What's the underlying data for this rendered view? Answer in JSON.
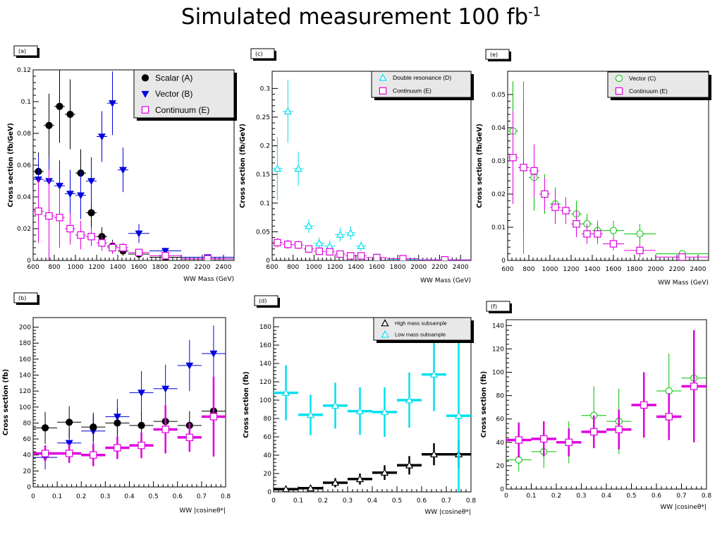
{
  "slide": {
    "title_main": "Simulated measurement 100 fb",
    "title_sup": "-1"
  },
  "colors": {
    "scalar": "#000000",
    "vector_b": "#0000e0",
    "continuum": "#e000e0",
    "double_resonance": "#00e0f0",
    "vector_c": "#00c000",
    "high_mass": "#000000",
    "low_mass": "#00e0f0",
    "legend_shadow": "#000000",
    "legend_fill": "#e8e8e8"
  },
  "chart_data": [
    {
      "id": "a",
      "panel_label": "(a)",
      "type": "scatter",
      "xlabel": "WW Mass (GeV)",
      "ylabel": "Cross section (fb/GeV)",
      "xlim": [
        600,
        2500
      ],
      "ylim": [
        0,
        0.12
      ],
      "xticks": [
        600,
        800,
        1000,
        1200,
        1400,
        1600,
        1800,
        2000,
        2200,
        2400
      ],
      "xtick_labels": [
        "600",
        "800",
        "1000",
        "1200",
        "1400",
        "1600",
        "1800",
        "2000",
        "2200",
        "2400"
      ],
      "yticks": [
        0,
        0.02,
        0.04,
        0.06,
        0.08,
        0.1,
        0.12
      ],
      "ytick_labels": [
        "0",
        "0.02",
        "0.04",
        "0.06",
        "0.08",
        "0.1",
        "0.12"
      ],
      "legend_position": "top-right",
      "legend_font": 12,
      "series": [
        {
          "name": "Scalar (A)",
          "marker": "circle-filled",
          "color": "#000000",
          "lw": 1,
          "x": [
            650,
            750,
            850,
            950,
            1050,
            1150,
            1250,
            1350,
            1450,
            1600,
            1850,
            2250
          ],
          "xerr": [
            50,
            50,
            50,
            50,
            50,
            50,
            50,
            50,
            50,
            100,
            150,
            250
          ],
          "y": [
            0.056,
            0.085,
            0.097,
            0.092,
            0.055,
            0.03,
            0.015,
            0.009,
            0.006,
            0.004,
            0.002,
            0.001
          ],
          "yerr": [
            0.012,
            0.02,
            0.023,
            0.022,
            0.015,
            0.01,
            0.006,
            0.004,
            0.003,
            0.002,
            0.001,
            0.0007
          ]
        },
        {
          "name": "Vector (B)",
          "marker": "triangle-down-filled",
          "color": "#0000e0",
          "lw": 1,
          "x": [
            650,
            750,
            850,
            950,
            1050,
            1150,
            1250,
            1350,
            1450,
            1600,
            1850,
            2250
          ],
          "xerr": [
            50,
            50,
            50,
            50,
            50,
            50,
            50,
            50,
            50,
            100,
            150,
            250
          ],
          "y": [
            0.051,
            0.05,
            0.047,
            0.042,
            0.041,
            0.05,
            0.078,
            0.099,
            0.057,
            0.017,
            0.006,
            0.002
          ],
          "yerr": [
            0.015,
            0.015,
            0.016,
            0.015,
            0.015,
            0.015,
            0.016,
            0.02,
            0.014,
            0.006,
            0.002,
            0.001
          ]
        },
        {
          "name": "Continuum (E)",
          "marker": "square-open",
          "color": "#e000e0",
          "lw": 1,
          "x": [
            650,
            750,
            850,
            950,
            1050,
            1150,
            1250,
            1350,
            1450,
            1600,
            1850,
            2250
          ],
          "xerr": [
            50,
            50,
            50,
            50,
            50,
            50,
            50,
            50,
            50,
            100,
            150,
            250
          ],
          "y": [
            0.031,
            0.028,
            0.027,
            0.02,
            0.016,
            0.015,
            0.011,
            0.008,
            0.008,
            0.005,
            0.003,
            0.001
          ],
          "yerr": [
            0.02,
            0.029,
            0.019,
            0.01,
            0.009,
            0.006,
            0.005,
            0.004,
            0.003,
            0.002,
            0.002,
            0.001
          ]
        }
      ]
    },
    {
      "id": "c",
      "panel_label": "(c)",
      "type": "scatter",
      "xlabel": "WW Mass (GeV)",
      "ylabel": "Cross section (fb/GeV)",
      "xlim": [
        600,
        2500
      ],
      "ylim": [
        0,
        0.33
      ],
      "xticks": [
        600,
        800,
        1000,
        1200,
        1400,
        1600,
        1800,
        2000,
        2200,
        2400
      ],
      "xtick_labels": [
        "600",
        "800",
        "1000",
        "1200",
        "1400",
        "1600",
        "1800",
        "2000",
        "2200",
        "2400"
      ],
      "yticks": [
        0,
        0.05,
        0.1,
        0.15,
        0.2,
        0.25,
        0.3
      ],
      "ytick_labels": [
        "0",
        "0.05",
        "0.1",
        "0.15",
        "0.2",
        "0.25",
        "0.3"
      ],
      "legend_position": "top-right",
      "legend_font": 8.5,
      "series": [
        {
          "name": "Double resonance (D)",
          "marker": "triangle-up-open",
          "color": "#00e0f0",
          "lw": 1,
          "x": [
            650,
            750,
            850,
            950,
            1050,
            1150,
            1250,
            1350,
            1450,
            1600,
            1850,
            2250
          ],
          "xerr": [
            50,
            50,
            50,
            50,
            50,
            50,
            50,
            50,
            50,
            100,
            150,
            250
          ],
          "y": [
            0.16,
            0.26,
            0.16,
            0.06,
            0.03,
            0.025,
            0.045,
            0.048,
            0.025,
            0.005,
            0.002,
            0.001
          ],
          "yerr": [
            0.055,
            0.055,
            0.03,
            0.012,
            0.01,
            0.01,
            0.012,
            0.012,
            0.009,
            0.003,
            0.001,
            0.001
          ]
        },
        {
          "name": "Continuum (E)",
          "marker": "square-open",
          "color": "#e000e0",
          "lw": 1,
          "x": [
            650,
            750,
            850,
            950,
            1050,
            1150,
            1250,
            1350,
            1450,
            1600,
            1850,
            2250
          ],
          "xerr": [
            50,
            50,
            50,
            50,
            50,
            50,
            50,
            50,
            50,
            100,
            150,
            250
          ],
          "y": [
            0.031,
            0.028,
            0.027,
            0.02,
            0.016,
            0.015,
            0.011,
            0.008,
            0.008,
            0.005,
            0.003,
            0.001
          ],
          "yerr": [
            0.008,
            0.008,
            0.007,
            0.006,
            0.005,
            0.005,
            0.004,
            0.003,
            0.003,
            0.002,
            0.001,
            0.001
          ]
        }
      ]
    },
    {
      "id": "e",
      "panel_label": "(e)",
      "type": "scatter",
      "xlabel": "WW Mass (GeV)",
      "ylabel": "Cross section (fb/GeV)",
      "xlim": [
        600,
        2500
      ],
      "ylim": [
        0,
        0.057
      ],
      "xticks": [
        600,
        800,
        1000,
        1200,
        1400,
        1600,
        1800,
        2000,
        2200,
        2400
      ],
      "xtick_labels": [
        "600",
        "800",
        "1000",
        "1200",
        "1400",
        "1600",
        "1800",
        "2000",
        "2200",
        "2400"
      ],
      "yticks": [
        0,
        0.01,
        0.02,
        0.03,
        0.04,
        0.05
      ],
      "ytick_labels": [
        "0",
        "0.01",
        "0.02",
        "0.03",
        "0.04",
        "0.05"
      ],
      "legend_position": "top-right",
      "legend_font": 8.5,
      "series": [
        {
          "name": "Vector (C)",
          "marker": "circle-open",
          "color": "#00c000",
          "lw": 1,
          "x": [
            650,
            750,
            850,
            950,
            1050,
            1150,
            1250,
            1350,
            1450,
            1600,
            1850,
            2250
          ],
          "xerr": [
            50,
            50,
            50,
            50,
            50,
            50,
            50,
            50,
            50,
            100,
            150,
            250
          ],
          "y": [
            0.039,
            0.028,
            0.025,
            0.02,
            0.017,
            0.015,
            0.014,
            0.011,
            0.009,
            0.009,
            0.008,
            0.002
          ],
          "yerr": [
            0.015,
            0.026,
            0.01,
            0.006,
            0.005,
            0.004,
            0.004,
            0.003,
            0.003,
            0.003,
            0.003,
            0.001
          ]
        },
        {
          "name": "Continuum (E)",
          "marker": "square-open",
          "color": "#e000e0",
          "lw": 1,
          "x": [
            650,
            750,
            850,
            950,
            1050,
            1150,
            1250,
            1350,
            1450,
            1600,
            1850,
            2250
          ],
          "xerr": [
            50,
            50,
            50,
            50,
            50,
            50,
            50,
            50,
            50,
            100,
            150,
            250
          ],
          "y": [
            0.031,
            0.028,
            0.027,
            0.02,
            0.016,
            0.015,
            0.011,
            0.008,
            0.008,
            0.005,
            0.003,
            0.001
          ],
          "yerr": [
            0.014,
            0.02,
            0.008,
            0.005,
            0.005,
            0.004,
            0.004,
            0.003,
            0.003,
            0.002,
            0.002,
            0.001
          ]
        }
      ]
    },
    {
      "id": "b",
      "panel_label": "(b)",
      "type": "scatter",
      "xlabel": "WW |cosineθ*|",
      "ylabel": "Cross section (fb)",
      "xlim": [
        0,
        0.8
      ],
      "ylim": [
        0,
        212
      ],
      "xticks": [
        0,
        0.1,
        0.2,
        0.3,
        0.4,
        0.5,
        0.6,
        0.7,
        0.8
      ],
      "xtick_labels": [
        "0",
        "0.1",
        "0.2",
        "0.3",
        "0.4",
        "0.5",
        "0.6",
        "0.7",
        "0.8"
      ],
      "yticks": [
        0,
        20,
        40,
        60,
        80,
        100,
        120,
        140,
        160,
        180,
        200
      ],
      "ytick_labels": [
        "0",
        "20",
        "40",
        "60",
        "80",
        "100",
        "120",
        "140",
        "160",
        "180",
        "200"
      ],
      "legend_position": "none",
      "legend_font": 0,
      "series": [
        {
          "name": "",
          "marker": "triangle-down-filled",
          "color": "#0000e0",
          "lw": 1,
          "x": [
            0.05,
            0.15,
            0.25,
            0.35,
            0.45,
            0.55,
            0.65,
            0.75
          ],
          "xerr": [
            0.05,
            0.05,
            0.05,
            0.05,
            0.05,
            0.05,
            0.05,
            0.05
          ],
          "y": [
            37,
            55,
            70,
            88,
            118,
            123,
            152,
            167
          ],
          "yerr": [
            15,
            18,
            20,
            22,
            27,
            30,
            32,
            35
          ]
        },
        {
          "name": "",
          "marker": "circle-filled",
          "color": "#000000",
          "lw": 1,
          "x": [
            0.05,
            0.15,
            0.25,
            0.35,
            0.45,
            0.55,
            0.65,
            0.75
          ],
          "xerr": [
            0.05,
            0.05,
            0.05,
            0.05,
            0.05,
            0.05,
            0.05,
            0.05
          ],
          "y": [
            74,
            81,
            75,
            80,
            77,
            82,
            77,
            95
          ],
          "yerr": [
            20,
            20,
            18,
            18,
            17,
            18,
            18,
            25
          ]
        },
        {
          "name": "",
          "marker": "square-open",
          "color": "#e000e0",
          "lw": 3.5,
          "x": [
            0.05,
            0.15,
            0.25,
            0.35,
            0.45,
            0.55,
            0.65,
            0.75
          ],
          "xerr": [
            0.05,
            0.05,
            0.05,
            0.05,
            0.05,
            0.05,
            0.05,
            0.05
          ],
          "y": [
            42,
            42,
            40,
            49,
            52,
            72,
            62,
            88
          ],
          "yerr": [
            10,
            12,
            14,
            14,
            16,
            30,
            18,
            50
          ]
        }
      ]
    },
    {
      "id": "d",
      "panel_label": "(d)",
      "type": "scatter",
      "xlabel": "WW |cosineθ*|",
      "ylabel": "Cross section (fb)",
      "xlim": [
        0,
        0.8
      ],
      "ylim": [
        0,
        190
      ],
      "xticks": [
        0,
        0.1,
        0.2,
        0.3,
        0.4,
        0.5,
        0.6,
        0.7,
        0.8
      ],
      "xtick_labels": [
        "0",
        "0.1",
        "0.2",
        "0.3",
        "0.4",
        "0.5",
        "0.6",
        "0.7",
        "0.8"
      ],
      "yticks": [
        0,
        20,
        40,
        60,
        80,
        100,
        120,
        140,
        160,
        180
      ],
      "ytick_labels": [
        "0",
        "20",
        "40",
        "60",
        "80",
        "100",
        "120",
        "140",
        "160",
        "180"
      ],
      "legend_position": "top-right",
      "legend_font": 7.5,
      "series": [
        {
          "name": "High mass subsample",
          "marker": "triangle-up-open",
          "color": "#000000",
          "lw": 3.5,
          "x": [
            0.05,
            0.15,
            0.25,
            0.35,
            0.45,
            0.55,
            0.65,
            0.75
          ],
          "xerr": [
            0.05,
            0.05,
            0.05,
            0.05,
            0.05,
            0.05,
            0.05,
            0.05
          ],
          "y": [
            3,
            4,
            10,
            14,
            21,
            29,
            41,
            41
          ],
          "yerr": [
            2,
            3,
            5,
            6,
            8,
            10,
            12,
            15
          ]
        },
        {
          "name": "Low mass subsample",
          "marker": "triangle-up-open",
          "color": "#00e0f0",
          "lw": 3.5,
          "x": [
            0.05,
            0.15,
            0.25,
            0.35,
            0.45,
            0.55,
            0.65,
            0.75
          ],
          "xerr": [
            0.05,
            0.05,
            0.05,
            0.05,
            0.05,
            0.05,
            0.05,
            0.05
          ],
          "y": [
            108,
            84,
            94,
            88,
            87,
            100,
            128,
            83
          ],
          "yerr": [
            30,
            22,
            25,
            26,
            27,
            30,
            40,
            83
          ]
        }
      ]
    },
    {
      "id": "f",
      "panel_label": "(f)",
      "type": "scatter",
      "xlabel": "WW |cosineθ*|",
      "ylabel": "Cross section (fb)",
      "xlim": [
        0,
        0.8
      ],
      "ylim": [
        0,
        145
      ],
      "xticks": [
        0,
        0.1,
        0.2,
        0.3,
        0.4,
        0.5,
        0.6,
        0.7,
        0.8
      ],
      "xtick_labels": [
        "0",
        "0.1",
        "0.2",
        "0.3",
        "0.4",
        "0.5",
        "0.6",
        "0.7",
        "0.8"
      ],
      "yticks": [
        0,
        20,
        40,
        60,
        80,
        100,
        120,
        140
      ],
      "ytick_labels": [
        "0",
        "20",
        "40",
        "60",
        "80",
        "100",
        "120",
        "140"
      ],
      "legend_position": "none",
      "legend_font": 0,
      "series": [
        {
          "name": "",
          "marker": "circle-open",
          "color": "#00c000",
          "lw": 1,
          "x": [
            0.05,
            0.15,
            0.25,
            0.35,
            0.45,
            0.55,
            0.65,
            0.75
          ],
          "xerr": [
            0.05,
            0.05,
            0.05,
            0.05,
            0.05,
            0.05,
            0.05,
            0.05
          ],
          "y": [
            25,
            32,
            40,
            63,
            58,
            72,
            84,
            95
          ],
          "yerr": [
            10,
            14,
            18,
            25,
            28,
            28,
            32,
            40
          ]
        },
        {
          "name": "",
          "marker": "square-open",
          "color": "#e000e0",
          "lw": 3.5,
          "x": [
            0.05,
            0.15,
            0.25,
            0.35,
            0.45,
            0.55,
            0.65,
            0.75
          ],
          "xerr": [
            0.05,
            0.05,
            0.05,
            0.05,
            0.05,
            0.05,
            0.05,
            0.05
          ],
          "y": [
            42,
            43,
            40,
            49,
            51,
            72,
            62,
            88
          ],
          "yerr": [
            15,
            15,
            12,
            14,
            17,
            28,
            20,
            48
          ]
        }
      ]
    }
  ]
}
